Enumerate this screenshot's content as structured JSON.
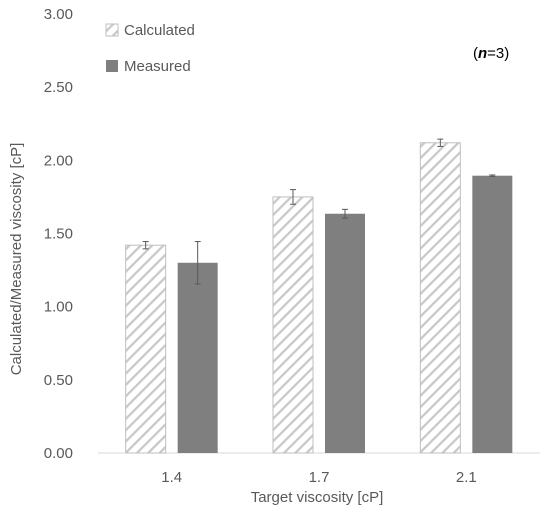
{
  "chart_data": {
    "type": "bar",
    "xlabel": "Target viscosity [cP]",
    "ylabel": "Calculated/Measured viscosity [cP]",
    "ylim": [
      0,
      3.0
    ],
    "yticks": [
      "0.00",
      "0.50",
      "1.00",
      "1.50",
      "2.00",
      "2.50",
      "3.00"
    ],
    "categories": [
      "1.4",
      "1.7",
      "2.1"
    ],
    "series": [
      {
        "name": "Calculated",
        "values": [
          1.42,
          1.75,
          2.12
        ],
        "errors": [
          0.025,
          0.05,
          0.025
        ],
        "pattern": "hatched",
        "color": "#bfbfbf"
      },
      {
        "name": "Measured",
        "values": [
          1.3,
          1.635,
          1.895
        ],
        "errors": [
          0.145,
          0.03,
          0.005
        ],
        "pattern": "solid",
        "color": "#7f7f7f"
      }
    ],
    "annotation": {
      "prefix": "(",
      "italic": "n",
      "suffix": "=3)"
    },
    "legend_position": "top-left",
    "grid": false
  }
}
